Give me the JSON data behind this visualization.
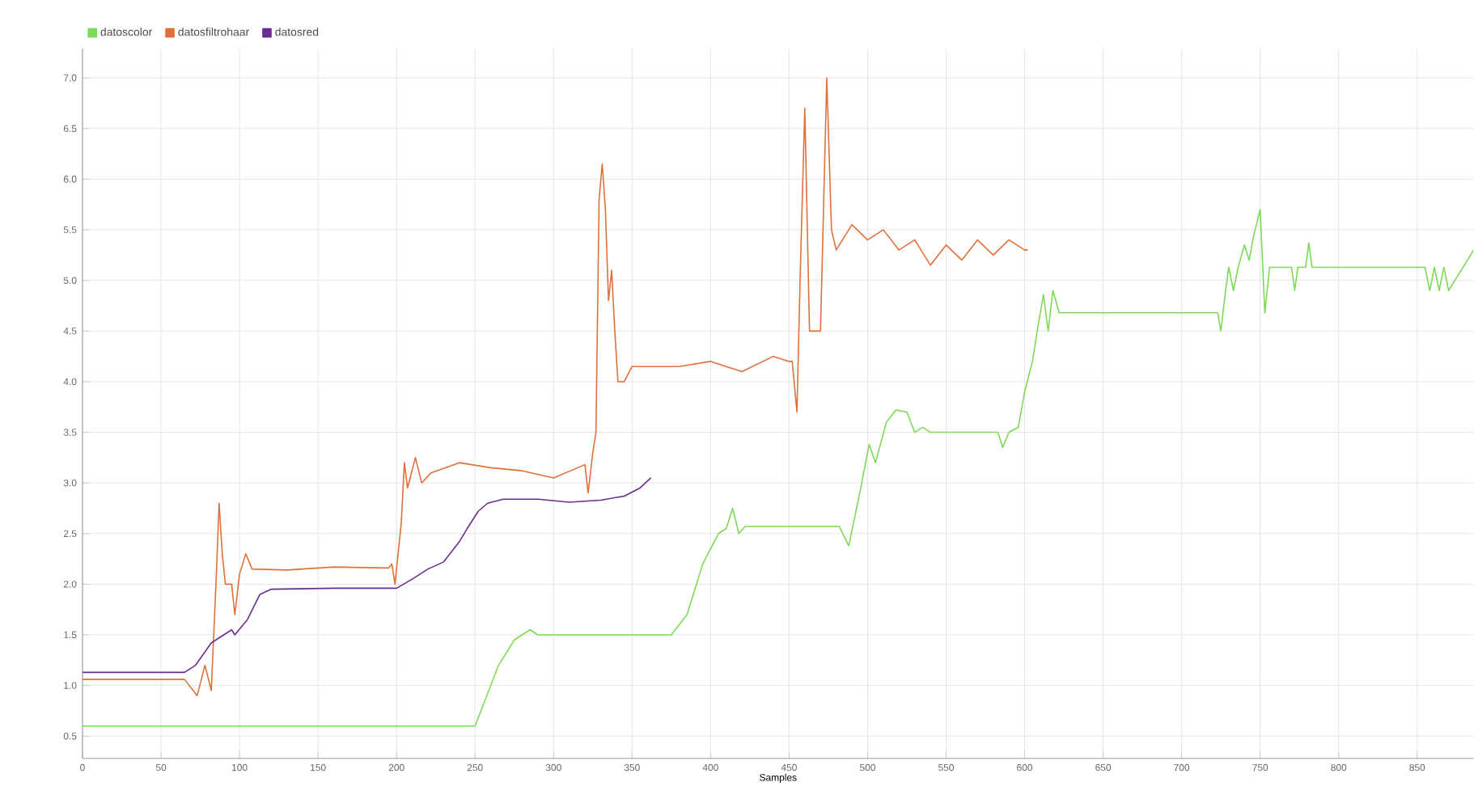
{
  "chart_data": {
    "type": "line",
    "xlabel": "Samples",
    "xlim": [
      0,
      886
    ],
    "ylim": [
      0.28,
      7.29
    ],
    "xticks": [
      0,
      50,
      100,
      150,
      200,
      250,
      300,
      350,
      400,
      450,
      500,
      550,
      600,
      650,
      700,
      750,
      800,
      850
    ],
    "yticks": [
      {
        "value": 0.5,
        "label": "0.5"
      },
      {
        "value": 1,
        "label": "1.0"
      },
      {
        "value": 1.5,
        "label": "1.5"
      },
      {
        "value": 2,
        "label": "2.0"
      },
      {
        "value": 2.5,
        "label": "2.5"
      },
      {
        "value": 3,
        "label": "3.0"
      },
      {
        "value": 3.5,
        "label": "3.5"
      },
      {
        "value": 4,
        "label": "4.0"
      },
      {
        "value": 4.5,
        "label": "4.5"
      },
      {
        "value": 5,
        "label": "5.0"
      },
      {
        "value": 5.5,
        "label": "5.5"
      },
      {
        "value": 6,
        "label": "6.0"
      },
      {
        "value": 6.5,
        "label": "6.5"
      },
      {
        "value": 7,
        "label": "7.0"
      }
    ],
    "grid": true,
    "legend": "top left",
    "marker": "none",
    "line_style": "solid",
    "series": [
      {
        "name": "datoscolor",
        "color": "#7ed957",
        "x": [
          0,
          250,
          255,
          265,
          275,
          285,
          290,
          300,
          375,
          385,
          395,
          405,
          410,
          414,
          418,
          422,
          482,
          488,
          495,
          501,
          505,
          512,
          518,
          525,
          530,
          535,
          540,
          583,
          586,
          590,
          596,
          600,
          605,
          608,
          612,
          615,
          618,
          622,
          625,
          715,
          723,
          725,
          728,
          730,
          733,
          736,
          740,
          743,
          746,
          750,
          753,
          756,
          770,
          772,
          774,
          779,
          781,
          783,
          855,
          858,
          861,
          864,
          867,
          870,
          886
        ],
        "values": [
          0.6,
          0.6,
          0.8,
          1.2,
          1.45,
          1.55,
          1.5,
          1.5,
          1.5,
          1.7,
          2.2,
          2.5,
          2.55,
          2.75,
          2.5,
          2.57,
          2.57,
          2.38,
          2.9,
          3.38,
          3.2,
          3.6,
          3.72,
          3.7,
          3.5,
          3.55,
          3.5,
          3.5,
          3.35,
          3.5,
          3.55,
          3.9,
          4.2,
          4.5,
          4.86,
          4.5,
          4.9,
          4.68,
          4.68,
          4.68,
          4.68,
          4.5,
          4.9,
          5.13,
          4.9,
          5.13,
          5.35,
          5.2,
          5.45,
          5.7,
          4.68,
          5.13,
          5.13,
          4.9,
          5.13,
          5.13,
          5.37,
          5.13,
          5.13,
          4.9,
          5.13,
          4.9,
          5.13,
          4.9,
          5.3
        ]
      },
      {
        "name": "datosfiltrohaar",
        "color": "#e0703a",
        "x": [
          0,
          65,
          73,
          78,
          82,
          85,
          87,
          89,
          91,
          95,
          97,
          100,
          104,
          108,
          130,
          160,
          195,
          197,
          199,
          203,
          205,
          207,
          212,
          216,
          222,
          240,
          260,
          280,
          300,
          320,
          322,
          325,
          327,
          329,
          331,
          333,
          335,
          337,
          339,
          341,
          345,
          350,
          380,
          400,
          420,
          440,
          450,
          452,
          455,
          457,
          460,
          463,
          465,
          470,
          474,
          477,
          480,
          490,
          500,
          510,
          520,
          530,
          540,
          550,
          560,
          570,
          580,
          590,
          600,
          602
        ],
        "values": [
          1.06,
          1.06,
          0.9,
          1.2,
          0.95,
          2.0,
          2.8,
          2.3,
          2.0,
          2.0,
          1.7,
          2.1,
          2.3,
          2.15,
          2.14,
          2.17,
          2.16,
          2.2,
          2.0,
          2.6,
          3.2,
          2.95,
          3.25,
          3.0,
          3.1,
          3.2,
          3.15,
          3.12,
          3.05,
          3.18,
          2.9,
          3.3,
          3.5,
          5.8,
          6.15,
          5.7,
          4.8,
          5.1,
          4.5,
          4.0,
          4.0,
          4.15,
          4.15,
          4.2,
          4.1,
          4.25,
          4.2,
          4.2,
          3.7,
          5.0,
          6.7,
          4.5,
          4.5,
          4.5,
          7.0,
          5.5,
          5.3,
          5.55,
          5.4,
          5.5,
          5.3,
          5.4,
          5.15,
          5.35,
          5.2,
          5.4,
          5.25,
          5.4,
          5.3,
          5.3
        ]
      },
      {
        "name": "datosred",
        "color": "#6a2c91",
        "x": [
          0,
          65,
          72,
          82,
          90,
          95,
          97,
          105,
          113,
          120,
          160,
          200,
          210,
          220,
          230,
          240,
          245,
          252,
          258,
          268,
          290,
          310,
          330,
          345,
          355,
          362
        ],
        "values": [
          1.13,
          1.13,
          1.2,
          1.42,
          1.5,
          1.55,
          1.5,
          1.65,
          1.9,
          1.95,
          1.96,
          1.96,
          2.05,
          2.15,
          2.22,
          2.42,
          2.55,
          2.72,
          2.8,
          2.84,
          2.84,
          2.81,
          2.83,
          2.87,
          2.95,
          3.05
        ]
      }
    ]
  }
}
